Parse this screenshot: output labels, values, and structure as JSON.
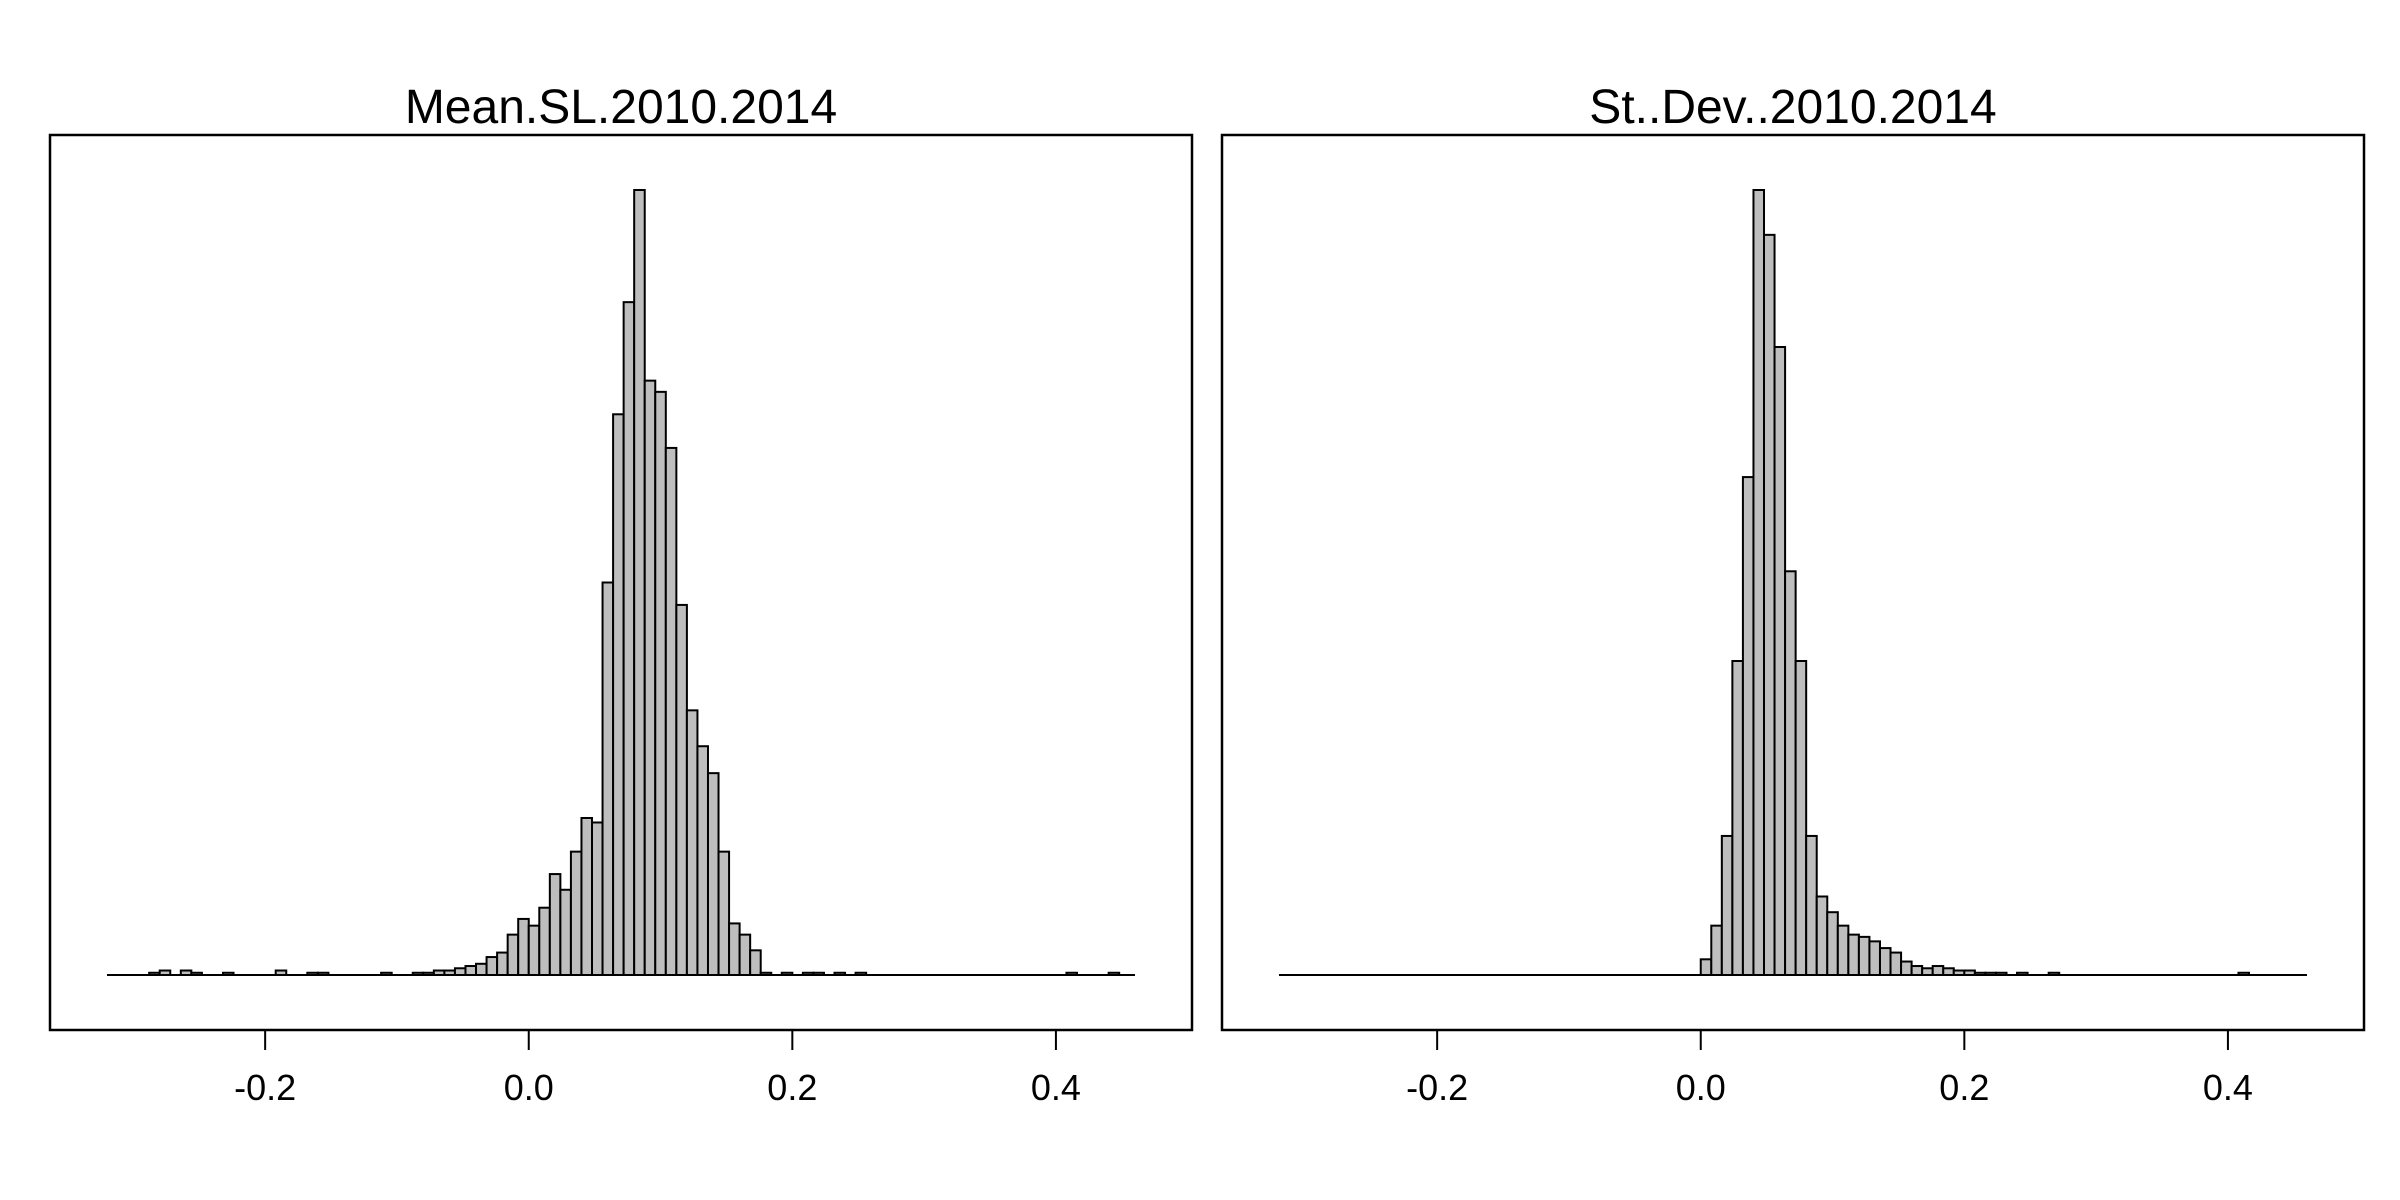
{
  "chart_data": [
    {
      "type": "bar",
      "title": "Mean.SL.2010.2014",
      "xlabel": "",
      "ylabel": "",
      "xlim": [
        -0.32,
        0.46
      ],
      "xticks": [
        -0.2,
        0.0,
        0.2,
        0.4
      ],
      "xtick_labels": [
        "-0.2",
        "0.0",
        "0.2",
        "0.4"
      ],
      "bin_width": 0.008,
      "bin_start": -0.32,
      "values": [
        0,
        0,
        0,
        0,
        1,
        2,
        0,
        2,
        1,
        0,
        0,
        1,
        0,
        0,
        0,
        0,
        2,
        0,
        0,
        1,
        1,
        0,
        0,
        0,
        0,
        0,
        1,
        0,
        0,
        1,
        1,
        2,
        2,
        3,
        4,
        5,
        8,
        10,
        18,
        25,
        22,
        30,
        45,
        38,
        55,
        70,
        68,
        175,
        250,
        300,
        350,
        265,
        260,
        235,
        165,
        118,
        102,
        90,
        55,
        23,
        18,
        11,
        1,
        0,
        1,
        0,
        1,
        1,
        0,
        1,
        0,
        1,
        0,
        0,
        0,
        0,
        0,
        0,
        0,
        0,
        0,
        0,
        0,
        0,
        0,
        0,
        0,
        0,
        0,
        0,
        0,
        1,
        0,
        0,
        0,
        1,
        0,
        0,
        0
      ],
      "ylim": [
        -23,
        380
      ]
    },
    {
      "type": "bar",
      "title": "St..Dev..2010.2014",
      "xlabel": "",
      "ylabel": "",
      "xlim": [
        -0.32,
        0.46
      ],
      "xticks": [
        -0.2,
        0.0,
        0.2,
        0.4
      ],
      "xtick_labels": [
        "-0.2",
        "0.0",
        "0.2",
        "0.4"
      ],
      "bin_width": 0.008,
      "bin_start": -0.32,
      "values": [
        0,
        0,
        0,
        0,
        0,
        0,
        0,
        0,
        0,
        0,
        0,
        0,
        0,
        0,
        0,
        0,
        0,
        0,
        0,
        0,
        0,
        0,
        0,
        0,
        0,
        0,
        0,
        0,
        0,
        0,
        0,
        0,
        0,
        0,
        0,
        0,
        0,
        0,
        0,
        0,
        7,
        22,
        62,
        140,
        222,
        350,
        330,
        280,
        180,
        140,
        62,
        35,
        28,
        22,
        18,
        17,
        15,
        12,
        10,
        6,
        4,
        3,
        4,
        3,
        2,
        2,
        1,
        1,
        1,
        0,
        1,
        0,
        0,
        1,
        0,
        0,
        0,
        0,
        0,
        0,
        0,
        0,
        0,
        0,
        0,
        0,
        0,
        0,
        0,
        0,
        0,
        1,
        0,
        0,
        0,
        0,
        0,
        0,
        0
      ],
      "ylim": [
        -23,
        380
      ]
    }
  ]
}
